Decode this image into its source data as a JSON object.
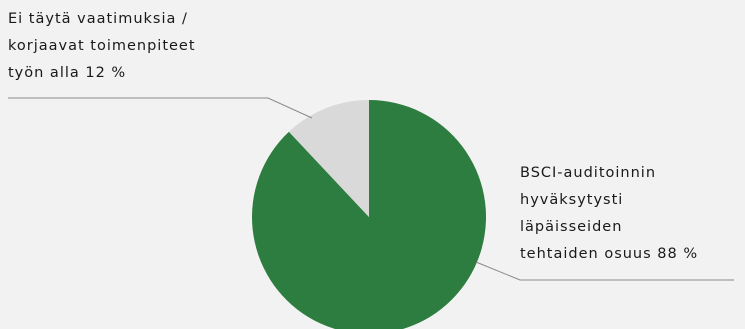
{
  "chart_data": {
    "type": "pie",
    "slices": [
      {
        "label_lines": [
          "BSCI-auditoinnin",
          "hyväksytysti",
          "läpäisseiden",
          "tehtaiden osuus 88 %"
        ],
        "value": 88,
        "color": "#2c7d3f"
      },
      {
        "label_lines": [
          "Ei täytä vaatimuksia /",
          "korjaavat toimenpiteet",
          "työn alla 12 %"
        ],
        "value": 12,
        "color": "#d9d9d9"
      }
    ],
    "start_angle_deg": 0,
    "direction": "clockwise",
    "legend": "none"
  }
}
